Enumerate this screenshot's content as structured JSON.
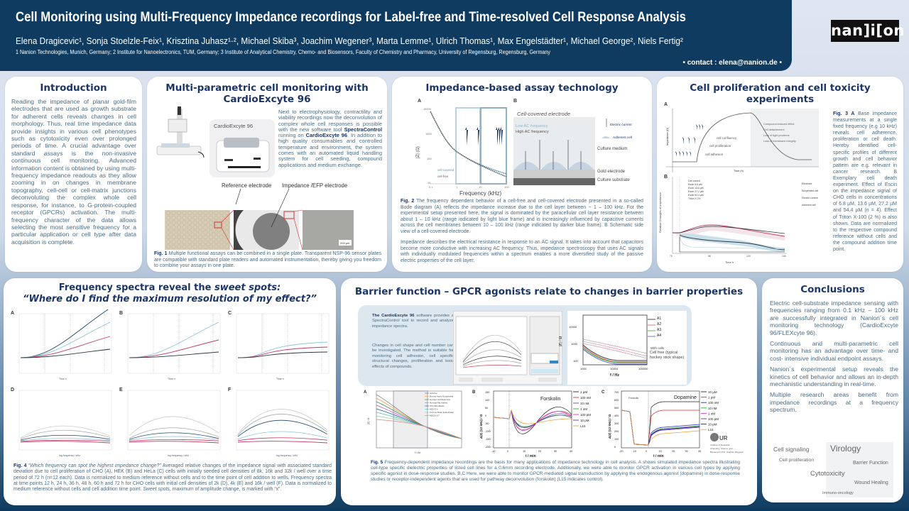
{
  "header": {
    "title": "Cell Monitoring using Multi-Frequency Impedance recordings for Label-free and Time-resolved Cell Response Analysis",
    "authors": "Elena Dragicevic¹, Sonja Stoelzle-Feix¹, Krisztina Juhasz¹·², Michael Skiba³, Joachim Wegener³, Marta Lemme¹, Ulrich Thomas¹, Max Engelstädter¹, Michael George², Niels Fertig²",
    "affiliations": "1 Nanion Technologies, Munich, Germany; 2 Institute for Nanoelectronics, TUM, Germany; 3 Institute of Analytical Chemistry, Chemo- and Biosensors, Faculty of Chemistry and Pharmacy, University of Regensburg, Regensburg, Germany",
    "contact": "• contact : elena@nanion.de •",
    "logo": "nan]i[on"
  },
  "colors": {
    "navy": "#0e3b5f",
    "title": "#1b3566",
    "pink": "#d23a6a",
    "lightblue": "#8fc3df",
    "dark": "#2b3a44"
  },
  "intro": {
    "title": "Introduction",
    "text": "Reading the impedance of planar gold-film electrodes that are used as growth substrate for adherent cells reveals changes in cell morphology. Thus, real time impedance data provide insights in various cell phenotypes such as cytotoxicity even over prolonged periods of time. A crucial advantage over standard assays is the non-invasive continuous cell monitoring. Advanced information content is obtained by using multi-frequency impedance readouts as they allow zooming in on changes in membrane topography, cell-cell or cell-matrix junctions deconvoluting the complex whole cell response, for instance, to G-protein-coupled receptor (GPCRs) activation. The multi-frequency character of the data allows selecting the most sensitive frequency for a particular application or cell type after data acquisition is complete."
  },
  "multi": {
    "title": "Multi-parametric cell monitoring with CardioExcyte 96",
    "device_label": "CardioExcyte 96",
    "text_pre": "Next to electrophysiology, contractility and viability recordings now the deconvolution of complex whole cell responses is possible with the new software tool ",
    "text_b1": "SpectraControl",
    "text_mid": " running on ",
    "text_b2": "CardioExcyte 96",
    "text_post": ". In addition to high quality consumables and controlled temperature and environment, the system comes with an automated liquid handling system for cell seeding, compound applications and medium exchange.",
    "ref_electrode": "Reference electrode",
    "imp_electrode": "Impedance /EFP electrode",
    "scale": "200 µm",
    "fig_label": "Fig. 1",
    "caption": " Multiple functional assays can be combined in a single plate. Transparent NSP-96 sensor plates are compatible with standard plate readers and automated instrumentation, thereby giving you freedom to combine your assays in one plate."
  },
  "impedance": {
    "title": "Impedance-based assay technology",
    "panel_a": "A",
    "panel_b": "B",
    "yaxis": "|Z| (Ω)",
    "xaxis": "Frequency (kHz)",
    "yticks": [
      "15000",
      "1500",
      "150",
      "15"
    ],
    "xticks": [
      "0.1",
      "1",
      "10",
      "100"
    ],
    "legend": [
      "cell-covered",
      "cell-free"
    ],
    "b_title": "Cell-covered electrode",
    "low_ac": "Low AC frequency",
    "high_ac": "High AC frequency",
    "electric_current": "Electric current",
    "adherent_cell": "Adherent cell",
    "culture_medium": "Culture medium",
    "gold_electrode": "Gold electrode",
    "culture_substrate": "Culture substrate",
    "fig_label": "Fig. 2",
    "caption": " The frequency dependent behavior of a cell-free and cell-covered electrode presented in a so-called Bode diagram (A) reflects the impedance increase due to the cell layer between ~ 1 – 100 kHz. For the experimental setup presented here, the signal is dominated by the paracellular cell layer resistance between about 1 – 10 kHz (range indicated by light blue frame) and is increasingly influenced by capacitive currents across the cell membranes between 10 – 100 kHz (range indicated by darker blue frame). B Schematic side view of a cell-covered electrode.",
    "text": "Impedance describes the electrical resistance in response to an AC signal. It takes into account that capacitors become more conductive with increasing AC frequency. Thus, impedance spectroscopy that uses AC signals with individually modulated frequencies within a spectrum enables a more diversified study of the passive electric properties of the cell layer."
  },
  "prolif": {
    "title": "Cell proliferation and cell toxicity experiments",
    "panel_a": "A",
    "panel_b": "B",
    "a_yaxis": "Impedance (Ω)",
    "a_xaxis": "Time (h)",
    "phases": [
      "cell confluency",
      "cell proliferation",
      "cell adhesion"
    ],
    "effects": [
      "Compound-induced effect",
      "Cell detachement",
      "Loss of tight junctions",
      "Loss of membrane integrity"
    ],
    "b_legend": [
      "Cell control",
      "Escin 6.8 µM",
      "Escin 13.6 µM",
      "Escin 27.2 µM",
      "Escin 54.4 µM",
      "Triton X 2%"
    ],
    "b_yaxis": "Relative Changes of Impedance",
    "b_xaxis": "Time h",
    "b_xticks": [
      "72",
      "96",
      "120",
      "144"
    ],
    "key": [
      "Electrode",
      "Suspended cell",
      "Electric current",
      "Adherent cell"
    ],
    "fig_label": "Fig. 3 A",
    "caption": " Base impedance measurements at a single fixed frequency (e.g 10 kHz) reveals cell adherence, proliferation or cell death. Hereby identified cell-specific profiles of different growth and cell behavior pattern are e.g. relevant in cancer research. B Exemplary cell death experiment. Effect of Escin on the impedance signal of CHO cells in concentrations of 6.8 µM, 13.6 µM, 27.2 µM and 54.4 µM (n = 4). Effect of Triton X-100 (2 %) is also shown. Data are normalized to the respective compound reference without cells and the compound addition time point."
  },
  "spectra": {
    "title_1": "Frequency spectra reveal the ",
    "title_1i": "sweet spots:",
    "title_2": "“Where do I find the maximum resolution of my effect?”",
    "panels": [
      {
        "label": "A",
        "x": "Time h"
      },
      {
        "label": "B",
        "x": "Time h"
      },
      {
        "label": "C",
        "x": "Time h"
      },
      {
        "label": "D",
        "x": "log frequency / kHz"
      },
      {
        "label": "E",
        "x": "log frequency / kHz"
      },
      {
        "label": "F",
        "x": "log frequency / kHz"
      }
    ],
    "fig_label": "Fig. 4",
    "caption_i": " “Which frequency can spot the highest impedance change?”",
    "caption": " Averaged relative changes of the impedance signal with associated standard deviation due to cell proliferation of CHO (A), HEK (B) and HeLa (C) cells with initially seeded cell densities of 8k, 16k and 32k / well over a time period of 72 h (n=12 each). Data is normalized to medium reference without cells and to the time point of cell addition to wells. Frequency spectra at time points 12 h, 24 h, 36 h, 48 h, 60 h and 72 h for CHO cells with initial cell densities of 2k (D), 4k (E) and 16k / well (F). Data is normalized to medium reference without cells and cell addition time point. ",
    "caption_end_i": "Sweet spots",
    "caption_end": ", maximum of amplitude change, is marked with “x”."
  },
  "barrier": {
    "title": "Barrier function – GPCR agonists relate to changes in barrier properties",
    "sw_b": "The CardioExcyte 96",
    "sw_text": " software provides a SpectraControl tool to record and analyze impedance spectra.",
    "text2": "Changes in cell shape and cell number can be investigated. The method is suitable for monitoring cell adhesion, cell specific structural changes, proliferation and toxic effects of compounds.",
    "z_legend": [
      "A1",
      "A2",
      "A3",
      "A4"
    ],
    "z_yaxis": "|Z| / Ω",
    "z_xaxis": "f / Hz",
    "z_xticks": [
      "1000",
      "10000",
      "100000"
    ],
    "z_yticks": [
      "10000",
      "1000",
      "100"
    ],
    "with_cells": "With cells",
    "cell_free": "Cell free (typical hockey stick shape)",
    "a_label": "A",
    "a_yaxis": "|Z| / Ω",
    "a_xaxis": "f / Hz",
    "a_legend": [
      "cell-free",
      "Bovine Aortic Endothelial",
      "Human Umbilical Vein",
      "Normal Rat Kidney",
      "3T3 Fibroblasts",
      "MDCK-II",
      "Porcine Brain Endothelial",
      "MDCK-C7"
    ],
    "b_label": "B",
    "b_title": "Forskolin",
    "b_yaxis": "Δ|Z| (12 kHz) / Ω",
    "b_xaxis": "t / min",
    "b_yticks": [
      "150",
      "100",
      "50",
      "0",
      "-50",
      "-100",
      "-150",
      "-200"
    ],
    "b_xticks": [
      "-10",
      "0",
      "10",
      "20",
      "30",
      "40"
    ],
    "b_legend": [
      "1 µM",
      "100 nM",
      "10 nM",
      "1 nM",
      "100 pM",
      "10 pM",
      "L15"
    ],
    "c_label": "C",
    "c_title": "Dopamine",
    "c_note": "Forskolin",
    "c_yaxis": "Δ|Z| (12 kHz) / Ω",
    "c_xaxis": "t / min",
    "c_yticks": [
      "700",
      "600",
      "500",
      "400",
      "300",
      "200",
      "100",
      "0"
    ],
    "c_xticks": [
      "-20",
      "-10",
      "0",
      "10",
      "20",
      "30",
      "40"
    ],
    "c_legend": [
      "10 µM",
      "1 µM",
      "100 nM",
      "10 nM",
      "1 nM",
      "100 pM",
      "10 pM",
      "L15"
    ],
    "ur_logo": "UR",
    "ur_text": "Institute of Analytical Chemistry, Chemo- and Biosensors Prof. Joachim Wegener",
    "fig_label": "Fig. 5",
    "caption": " Frequency-dependent impedance recordings are the basis for many applications of impedance technology in cell analysis. A shows simulated impedance spectra illustrating cell-type specific dielectric properties of listed cell lines for a 0.6mm recording electrode. Additionally, we were able to monitor GPCR activation in various cell types by applying specific agonist in dose-response studies. B,C Here, we were able to monitor GPCR-mediated signal transduction by applying the endogenous agonist (dopamine) in dose-response studies or receptor-independent agents that are used for pathway deconvolution (forskolin) (L15 indicates control)."
  },
  "conclusions": {
    "title": "Conclusions",
    "paragraphs": [
      "Electric cell-substrate impedance sensing with frequencies ranging from 0.1 kHz – 100 kHz are successfully integrated in Nanion´s cell monitoring technology (CardioExcyte 96/FLEXcyte 96).",
      "Continuous and multi-parametric cell monitoring has an advantage over time- and cost- intensive individual endpoint assays.",
      "Nanion´s experimental setup reveals the kinetics of cell behavior and allows an in-depth mechanistic understanding in real-time.",
      "Multiple research areas benefit from impedance recordings at a frequency spectrum."
    ],
    "cloud": [
      "Cell signaling",
      "Virology",
      "Cell proliferation",
      "Barrier Function",
      "Cytotoxicity",
      "Wound Healing",
      "Immuno-oncology"
    ]
  }
}
